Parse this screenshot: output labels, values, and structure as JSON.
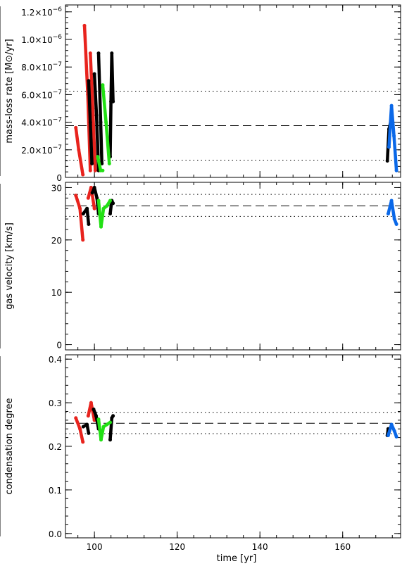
{
  "chart_data": [
    {
      "type": "scatter",
      "ylabel": "mass-loss rate [M⊙/yr]",
      "xlim": [
        93,
        174
      ],
      "ylim": [
        0,
        1.25
      ],
      "y_multiplier_note": "tick values are multiples of 10^-6",
      "yticks": [
        {
          "v": 0.0,
          "base": "0",
          "exp": ""
        },
        {
          "v": 0.2,
          "base": "2.0×10",
          "exp": "−7"
        },
        {
          "v": 0.4,
          "base": "4.0×10",
          "exp": "−7"
        },
        {
          "v": 0.6,
          "base": "6.0×10",
          "exp": "−7"
        },
        {
          "v": 0.8,
          "base": "8.0×10",
          "exp": "−7"
        },
        {
          "v": 1.0,
          "base": "1.0×10",
          "exp": "−6"
        },
        {
          "v": 1.2,
          "base": "1.2×10",
          "exp": "−6"
        }
      ],
      "reference_lines": {
        "mean": 0.375,
        "upper": 0.625,
        "lower": 0.125
      },
      "series": [
        {
          "color": "#e8231d",
          "segments": [
            [
              [
                95.5,
                0.36
              ],
              [
                96.2,
                0.2
              ],
              [
                97.2,
                0.02
              ]
            ],
            [
              [
                97.6,
                1.1
              ],
              [
                98.4,
                0.6
              ],
              [
                99.0,
                0.05
              ]
            ],
            [
              [
                99.0,
                0.9
              ],
              [
                99.6,
                0.5
              ],
              [
                100.2,
                0.05
              ]
            ]
          ]
        },
        {
          "color": "#000000",
          "segments": [
            [
              [
                98.6,
                0.7
              ],
              [
                99.0,
                0.4
              ],
              [
                99.4,
                0.1
              ]
            ],
            [
              [
                100.0,
                0.75
              ],
              [
                100.5,
                0.45
              ],
              [
                101.0,
                0.05
              ]
            ],
            [
              [
                101.0,
                0.9
              ],
              [
                101.5,
                0.4
              ],
              [
                101.8,
                0.1
              ]
            ],
            [
              [
                103.8,
                0.15
              ],
              [
                104.0,
                0.55
              ],
              [
                104.2,
                0.9
              ],
              [
                104.5,
                0.55
              ]
            ],
            [
              [
                170.8,
                0.12
              ],
              [
                171.2,
                0.35
              ],
              [
                171.6,
                0.4
              ]
            ]
          ]
        },
        {
          "color": "#22e014",
          "segments": [
            [
              [
                100.8,
                0.15
              ],
              [
                101.5,
                0.05
              ],
              [
                102.0,
                0.05
              ]
            ],
            [
              [
                102.0,
                0.67
              ],
              [
                102.8,
                0.4
              ],
              [
                103.6,
                0.1
              ]
            ]
          ]
        },
        {
          "color": "#0a68e8",
          "segments": [
            [
              [
                171.2,
                0.22
              ],
              [
                171.8,
                0.52
              ],
              [
                172.4,
                0.3
              ],
              [
                173.0,
                0.05
              ]
            ]
          ]
        }
      ]
    },
    {
      "type": "scatter",
      "ylabel": "gas velocity [km/s]",
      "xlim": [
        93,
        174
      ],
      "ylim": [
        -1,
        31
      ],
      "yticks": [
        {
          "v": 0,
          "base": "0",
          "exp": ""
        },
        {
          "v": 10,
          "base": "10",
          "exp": ""
        },
        {
          "v": 20,
          "base": "20",
          "exp": ""
        },
        {
          "v": 30,
          "base": "30",
          "exp": ""
        }
      ],
      "reference_lines": {
        "mean": 26.5,
        "upper": 28.7,
        "lower": 24.5
      },
      "series": [
        {
          "color": "#e8231d",
          "segments": [
            [
              [
                95.5,
                28.5
              ],
              [
                96.5,
                26.0
              ],
              [
                97.2,
                20.0
              ]
            ],
            [
              [
                98.5,
                28.0
              ],
              [
                99.2,
                30.0
              ],
              [
                100.0,
                26.0
              ]
            ]
          ]
        },
        {
          "color": "#000000",
          "segments": [
            [
              [
                97.3,
                25.0
              ],
              [
                98.2,
                26.0
              ],
              [
                98.6,
                23.0
              ]
            ],
            [
              [
                99.5,
                29.0
              ],
              [
                100.0,
                30.0
              ],
              [
                100.6,
                28.0
              ],
              [
                101.0,
                25.0
              ]
            ],
            [
              [
                103.8,
                25.0
              ],
              [
                104.2,
                27.5
              ],
              [
                104.5,
                27.0
              ]
            ]
          ]
        },
        {
          "color": "#22e014",
          "segments": [
            [
              [
                101.0,
                27.5
              ],
              [
                101.6,
                22.5
              ],
              [
                102.2,
                26.0
              ],
              [
                103.0,
                26.5
              ],
              [
                103.8,
                27.5
              ]
            ]
          ]
        },
        {
          "color": "#0a68e8",
          "segments": [
            [
              [
                171.0,
                25.0
              ],
              [
                171.8,
                27.5
              ],
              [
                172.5,
                24.0
              ],
              [
                173.0,
                23.0
              ]
            ]
          ]
        }
      ]
    },
    {
      "type": "scatter",
      "ylabel": "condensation degree",
      "xlabel": "time [yr]",
      "xlim": [
        93,
        174
      ],
      "ylim": [
        -0.01,
        0.41
      ],
      "xticks": [
        100,
        120,
        140,
        160
      ],
      "yticks": [
        {
          "v": 0.0,
          "base": "0.0",
          "exp": ""
        },
        {
          "v": 0.1,
          "base": "0.1",
          "exp": ""
        },
        {
          "v": 0.2,
          "base": "0.2",
          "exp": ""
        },
        {
          "v": 0.3,
          "base": "0.3",
          "exp": ""
        },
        {
          "v": 0.4,
          "base": "0.4",
          "exp": ""
        }
      ],
      "reference_lines": {
        "mean": 0.253,
        "upper": 0.278,
        "lower": 0.229
      },
      "series": [
        {
          "color": "#e8231d",
          "segments": [
            [
              [
                95.5,
                0.265
              ],
              [
                96.5,
                0.24
              ],
              [
                97.2,
                0.21
              ]
            ],
            [
              [
                98.5,
                0.27
              ],
              [
                99.2,
                0.3
              ],
              [
                100.0,
                0.26
              ]
            ]
          ]
        },
        {
          "color": "#000000",
          "segments": [
            [
              [
                97.3,
                0.245
              ],
              [
                98.2,
                0.25
              ],
              [
                98.6,
                0.23
              ]
            ],
            [
              [
                99.8,
                0.285
              ],
              [
                100.4,
                0.27
              ],
              [
                101.0,
                0.24
              ]
            ],
            [
              [
                103.8,
                0.215
              ],
              [
                104.2,
                0.265
              ],
              [
                104.5,
                0.27
              ]
            ],
            [
              [
                170.8,
                0.225
              ],
              [
                171.0,
                0.24
              ]
            ]
          ]
        },
        {
          "color": "#22e014",
          "segments": [
            [
              [
                101.0,
                0.262
              ],
              [
                101.6,
                0.215
              ],
              [
                102.2,
                0.245
              ],
              [
                103.0,
                0.25
              ],
              [
                103.8,
                0.255
              ]
            ]
          ]
        },
        {
          "color": "#0a68e8",
          "segments": [
            [
              [
                171.0,
                0.225
              ],
              [
                171.8,
                0.25
              ],
              [
                172.5,
                0.235
              ],
              [
                173.0,
                0.222
              ]
            ]
          ]
        }
      ]
    }
  ]
}
